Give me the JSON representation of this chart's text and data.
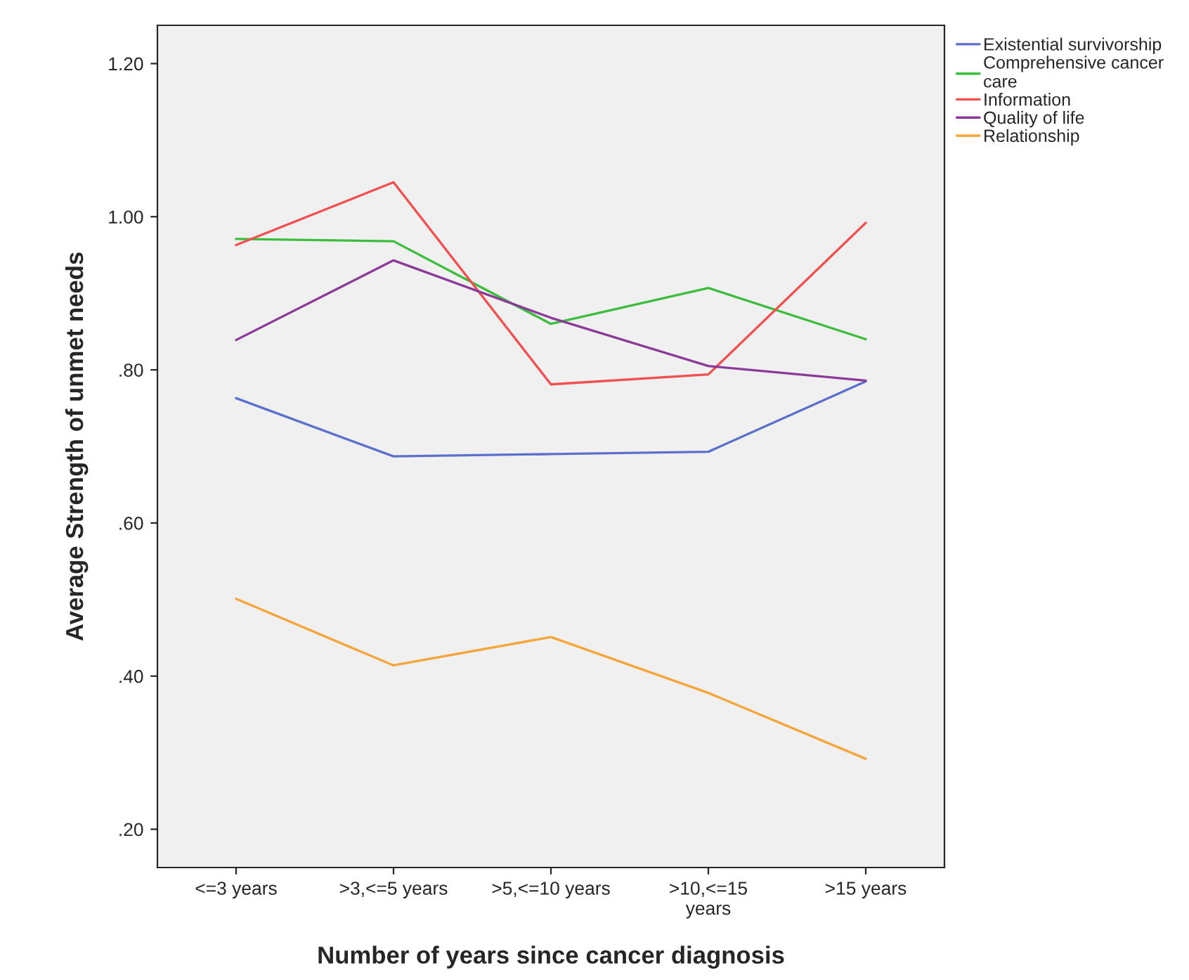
{
  "chart_data": {
    "type": "line",
    "xlabel": "Number of years since cancer diagnosis",
    "ylabel": "Average Strength of unmet needs",
    "categories": [
      "<=3 years",
      ">3,<=5 years",
      ">5,<=10 years",
      ">10,<=15\nyears",
      ">15 years"
    ],
    "series": [
      {
        "name": "Existential survivorship",
        "color": "#5b6fcc",
        "values": [
          0.763,
          0.687,
          0.69,
          0.693,
          0.785
        ]
      },
      {
        "name": "Comprehensive cancer\ncare",
        "color": "#3dbd3d",
        "values": [
          0.971,
          0.968,
          0.86,
          0.907,
          0.84
        ]
      },
      {
        "name": "Information",
        "color": "#f05050",
        "values": [
          0.963,
          1.045,
          0.781,
          0.794,
          0.992
        ]
      },
      {
        "name": "Quality of life",
        "color": "#8b3a98",
        "values": [
          0.839,
          0.943,
          0.868,
          0.805,
          0.786
        ]
      },
      {
        "name": "Relationship",
        "color": "#f5a53a",
        "values": [
          0.501,
          0.414,
          0.451,
          0.378,
          0.292
        ]
      }
    ],
    "ylim": [
      0.15,
      1.25
    ],
    "yticks": [
      {
        "value": 0.2,
        "label": ".20"
      },
      {
        "value": 0.4,
        "label": ".40"
      },
      {
        "value": 0.6,
        "label": ".60"
      },
      {
        "value": 0.8,
        "label": ".80"
      },
      {
        "value": 1.0,
        "label": "1.00"
      },
      {
        "value": 1.2,
        "label": "1.20"
      }
    ],
    "grid": false,
    "legend": "top right",
    "line_style": "solid",
    "marker": "none"
  }
}
